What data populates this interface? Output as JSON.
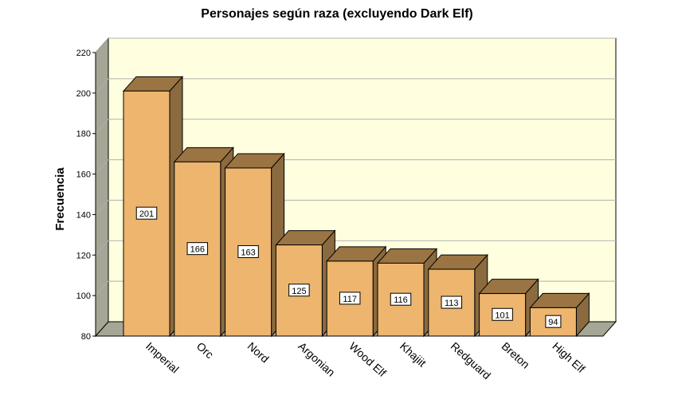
{
  "chart_data": {
    "type": "bar",
    "title": "Personajes según raza (excluyendo Dark Elf)",
    "xlabel": "",
    "ylabel": "Frecuencia",
    "categories": [
      "Imperial",
      "Orc",
      "Nord",
      "Argonian",
      "Wood Elf",
      "Khajiit",
      "Redguard",
      "Breton",
      "High Elf"
    ],
    "values": [
      201,
      166,
      163,
      125,
      117,
      116,
      113,
      101,
      94
    ],
    "ylim": [
      80,
      220
    ],
    "yticks": [
      80,
      100,
      120,
      140,
      160,
      180,
      200,
      220
    ],
    "grid": true,
    "style": "3d",
    "colors": {
      "bar_front": "#EDB56E",
      "bar_top": "#9A7442",
      "bar_side": "#8A6A3E",
      "plot_back": "#FFFFE0",
      "plot_left_wall": "#A6A696",
      "plot_floor": "#A6A696",
      "gridline": "#B0B0B0"
    }
  }
}
